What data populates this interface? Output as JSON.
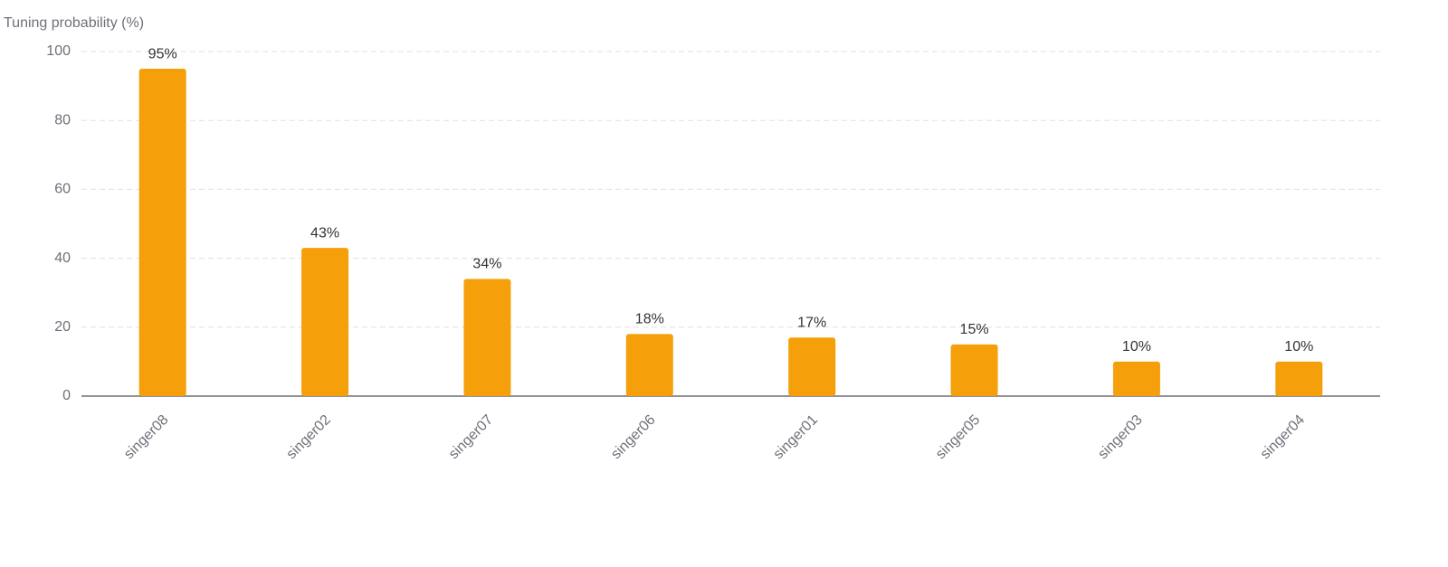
{
  "chart_data": {
    "type": "bar",
    "y_label": "Tuning probability (%)",
    "categories": [
      "singer08",
      "singer02",
      "singer07",
      "singer06",
      "singer01",
      "singer05",
      "singer03",
      "singer04"
    ],
    "values": [
      95,
      43,
      34,
      18,
      17,
      15,
      10,
      10
    ],
    "value_labels": [
      "95%",
      "43%",
      "34%",
      "18%",
      "17%",
      "15%",
      "10%",
      "10%"
    ],
    "color": "#f59f0a",
    "ylim": [
      0,
      100
    ],
    "yticks": [
      0,
      20,
      40,
      60,
      80,
      100
    ],
    "grid": true
  }
}
